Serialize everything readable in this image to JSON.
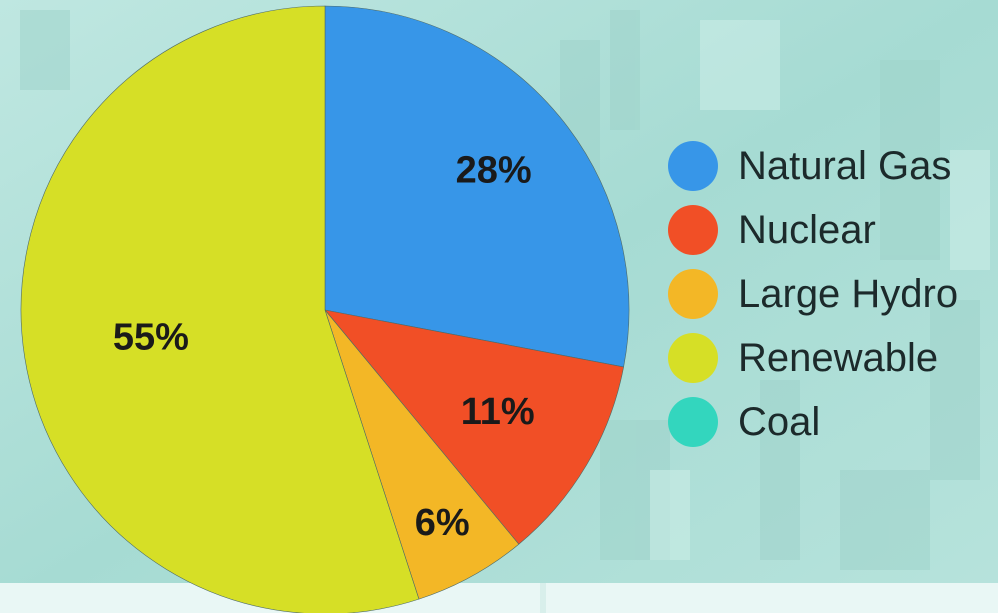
{
  "chart_data": {
    "type": "pie",
    "title": "",
    "legend_position": "right",
    "start_angle_deg": 0,
    "direction": "clockwise",
    "slices": [
      {
        "name": "Natural Gas",
        "value": 28,
        "label": "28%",
        "color": "#3796e8"
      },
      {
        "name": "Nuclear",
        "value": 11,
        "label": "11%",
        "color": "#f14f26"
      },
      {
        "name": "Large Hydro",
        "value": 6,
        "label": "6%",
        "color": "#f3b726"
      },
      {
        "name": "Renewable",
        "value": 55,
        "label": "55%",
        "color": "#d6df26"
      },
      {
        "name": "Coal",
        "value": 0,
        "label": "",
        "color": "#33d6be"
      }
    ]
  },
  "background": {
    "color": "#a9ddd6",
    "bottom_band_color": "#e9f7f5"
  }
}
